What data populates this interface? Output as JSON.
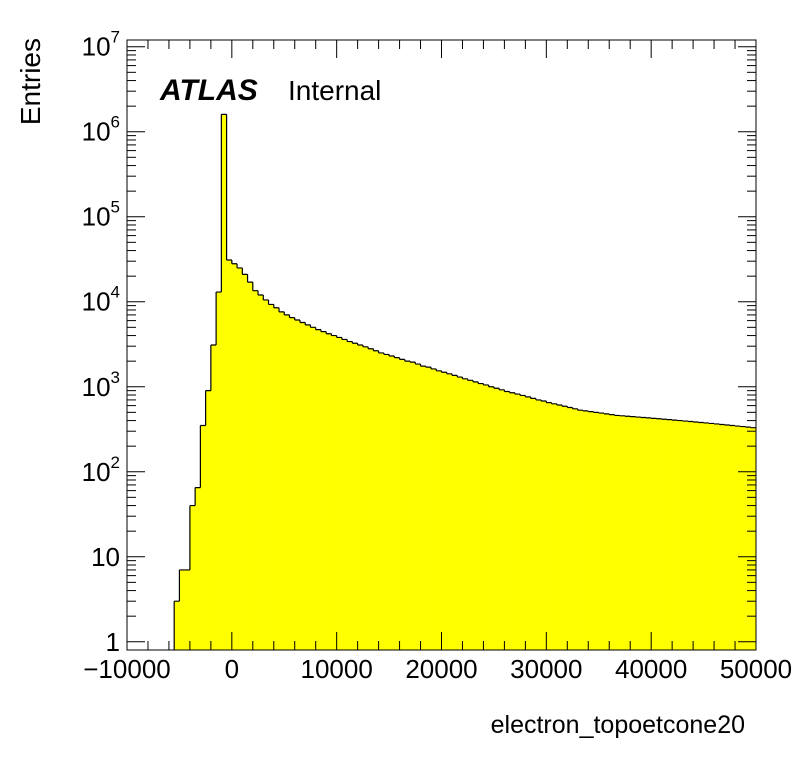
{
  "chart_data": {
    "type": "bar",
    "style": "histogram",
    "xlabel": "electron_topoetcone20",
    "ylabel": "Entries",
    "xlim": [
      -10000,
      50000
    ],
    "ylim": [
      0.8,
      12000000
    ],
    "yscale": "log",
    "grid": false,
    "fill_color": "#ffff00",
    "line_color": "#000000",
    "x_ticks": [
      {
        "value": -10000,
        "label": "−10000"
      },
      {
        "value": 0,
        "label": "0"
      },
      {
        "value": 10000,
        "label": "10000"
      },
      {
        "value": 20000,
        "label": "20000"
      },
      {
        "value": 30000,
        "label": "30000"
      },
      {
        "value": 40000,
        "label": "40000"
      },
      {
        "value": 50000,
        "label": "50000"
      }
    ],
    "y_ticks": [
      {
        "value": 1,
        "base": "1",
        "exp": ""
      },
      {
        "value": 10,
        "base": "10",
        "exp": ""
      },
      {
        "value": 100,
        "base": "10",
        "exp": "2"
      },
      {
        "value": 1000,
        "base": "10",
        "exp": "3"
      },
      {
        "value": 10000,
        "base": "10",
        "exp": "4"
      },
      {
        "value": 100000,
        "base": "10",
        "exp": "5"
      },
      {
        "value": 1000000,
        "base": "10",
        "exp": "6"
      },
      {
        "value": 10000000,
        "base": "10",
        "exp": "7"
      }
    ],
    "bins": {
      "start": -10000,
      "width": 500,
      "values": [
        0,
        0,
        0,
        0,
        0,
        0,
        0,
        0,
        0,
        3,
        7,
        7,
        40,
        65,
        350,
        900,
        3100,
        13000,
        1600000,
        31000,
        28000,
        25000,
        21000,
        17000,
        13500,
        12000,
        10500,
        9300,
        8500,
        7600,
        7000,
        6500,
        6100,
        5700,
        5350,
        5000,
        4700,
        4450,
        4200,
        4000,
        3800,
        3600,
        3400,
        3250,
        3100,
        2950,
        2800,
        2650,
        2500,
        2400,
        2300,
        2200,
        2100,
        2000,
        1950,
        1850,
        1750,
        1700,
        1620,
        1540,
        1480,
        1420,
        1360,
        1300,
        1240,
        1190,
        1140,
        1090,
        1050,
        1000,
        960,
        920,
        880,
        850,
        820,
        790,
        760,
        730,
        700,
        680,
        650,
        630,
        610,
        590,
        570,
        550,
        530,
        520,
        510,
        500,
        490,
        480,
        470,
        460,
        455,
        450,
        445,
        440,
        435,
        430,
        425,
        420,
        415,
        410,
        405,
        400,
        395,
        390,
        385,
        380,
        375,
        370,
        365,
        360,
        355,
        350,
        345,
        340,
        335,
        330
      ]
    }
  },
  "labels": {
    "experiment": "ATLAS",
    "status": "Internal"
  }
}
